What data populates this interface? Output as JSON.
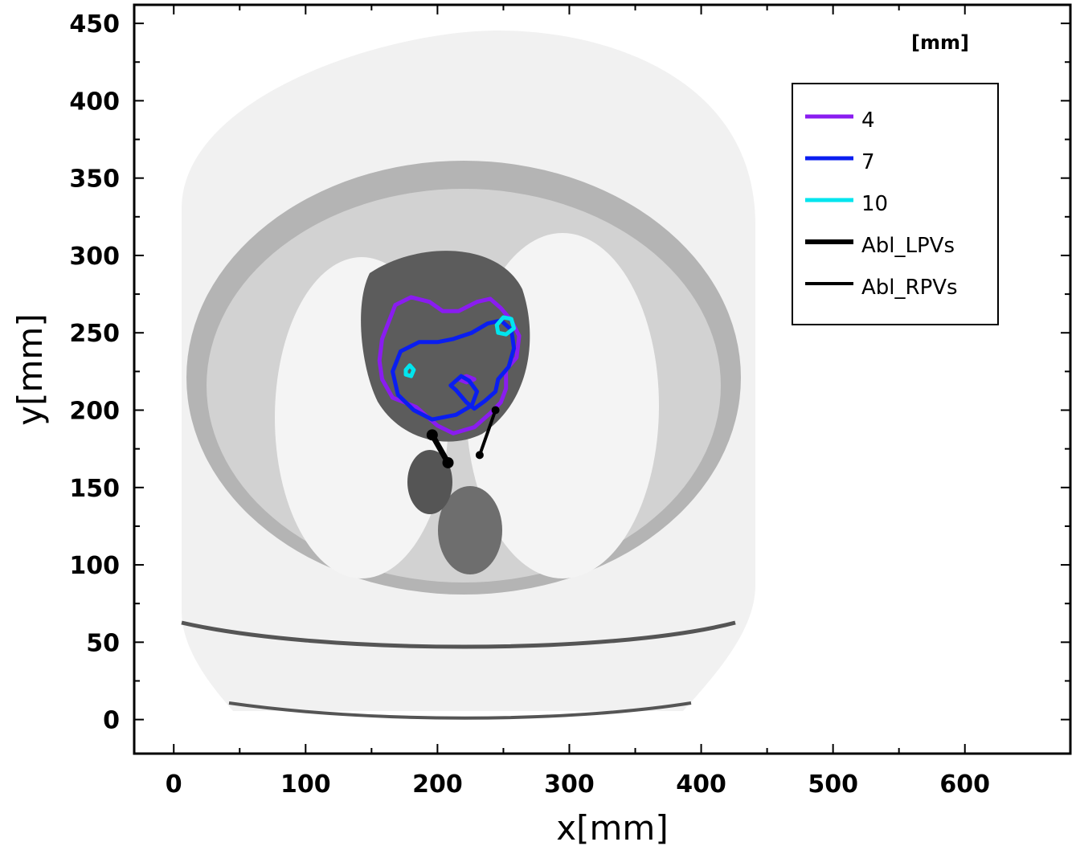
{
  "chart_data": {
    "type": "contour",
    "xlabel": "x[mm]",
    "ylabel": "y[mm]",
    "unit_label": "[mm]",
    "xlim": [
      -30,
      680
    ],
    "ylim": [
      -22,
      462
    ],
    "xticks": [
      0,
      100,
      200,
      300,
      400,
      500,
      600
    ],
    "yticks": [
      0,
      50,
      100,
      150,
      200,
      250,
      300,
      350,
      400,
      450
    ],
    "grid": false,
    "legend_position": "top-right",
    "background": "axial CT slice (grayscale) of the thorax",
    "series": [
      {
        "name": "4",
        "color": "#8a1cf0",
        "kind": "contour",
        "contours": [
          [
            [
              158,
              246
            ],
            [
              168,
              268
            ],
            [
              180,
              273
            ],
            [
              194,
              270
            ],
            [
              204,
              264
            ],
            [
              216,
              264
            ],
            [
              230,
              270
            ],
            [
              240,
              272
            ],
            [
              248,
              266
            ],
            [
              256,
              258
            ],
            [
              262,
              248
            ],
            [
              260,
              234
            ],
            [
              252,
              226
            ],
            [
              252,
              214
            ],
            [
              248,
              205
            ],
            [
              240,
              198
            ],
            [
              228,
              189
            ],
            [
              212,
              185
            ],
            [
              200,
              190
            ],
            [
              184,
              202
            ],
            [
              166,
              208
            ],
            [
              158,
              220
            ],
            [
              156,
              232
            ],
            [
              158,
              246
            ]
          ],
          [
            [
              216,
              220
            ],
            [
              222,
              222
            ],
            [
              228,
              220
            ],
            [
              222,
              218
            ],
            [
              216,
              220
            ]
          ]
        ]
      },
      {
        "name": "7",
        "color": "#0a1ef0",
        "kind": "contour",
        "contours": [
          [
            [
              166,
              225
            ],
            [
              172,
              238
            ],
            [
              186,
              244
            ],
            [
              200,
              244
            ],
            [
              212,
              246
            ],
            [
              226,
              250
            ],
            [
              238,
              256
            ],
            [
              248,
              258
            ],
            [
              256,
              252
            ],
            [
              258,
              240
            ],
            [
              254,
              228
            ],
            [
              246,
              220
            ],
            [
              244,
              212
            ],
            [
              236,
              206
            ],
            [
              228,
              201
            ],
            [
              222,
              205
            ],
            [
              214,
              213
            ],
            [
              210,
              216
            ],
            [
              218,
              222
            ],
            [
              224,
              219
            ],
            [
              230,
              212
            ],
            [
              226,
              203
            ],
            [
              214,
              197
            ],
            [
              196,
              194
            ],
            [
              182,
              200
            ],
            [
              170,
              210
            ],
            [
              166,
              225
            ]
          ]
        ]
      },
      {
        "name": "10",
        "color": "#00e5ee",
        "kind": "contour",
        "contours": [
          [
            [
              245,
              255
            ],
            [
              250,
              260
            ],
            [
              256,
              259
            ],
            [
              258,
              253
            ],
            [
              252,
              249
            ],
            [
              246,
              250
            ],
            [
              245,
              255
            ]
          ],
          [
            [
              176,
              226
            ],
            [
              179,
              229
            ],
            [
              182,
              226
            ],
            [
              180,
              222
            ],
            [
              176,
              223
            ],
            [
              176,
              226
            ]
          ]
        ]
      },
      {
        "name": "Abl_LPVs",
        "color": "#000000",
        "kind": "line",
        "width": "thick",
        "points": [
          [
            196,
            184
          ],
          [
            208,
            166
          ]
        ]
      },
      {
        "name": "Abl_RPVs",
        "color": "#000000",
        "kind": "line",
        "width": "thin",
        "points": [
          [
            244,
            200
          ],
          [
            232,
            171
          ]
        ]
      }
    ]
  },
  "legend": {
    "entries": [
      "4",
      "7",
      "10",
      "Abl_LPVs",
      "Abl_RPVs"
    ]
  }
}
